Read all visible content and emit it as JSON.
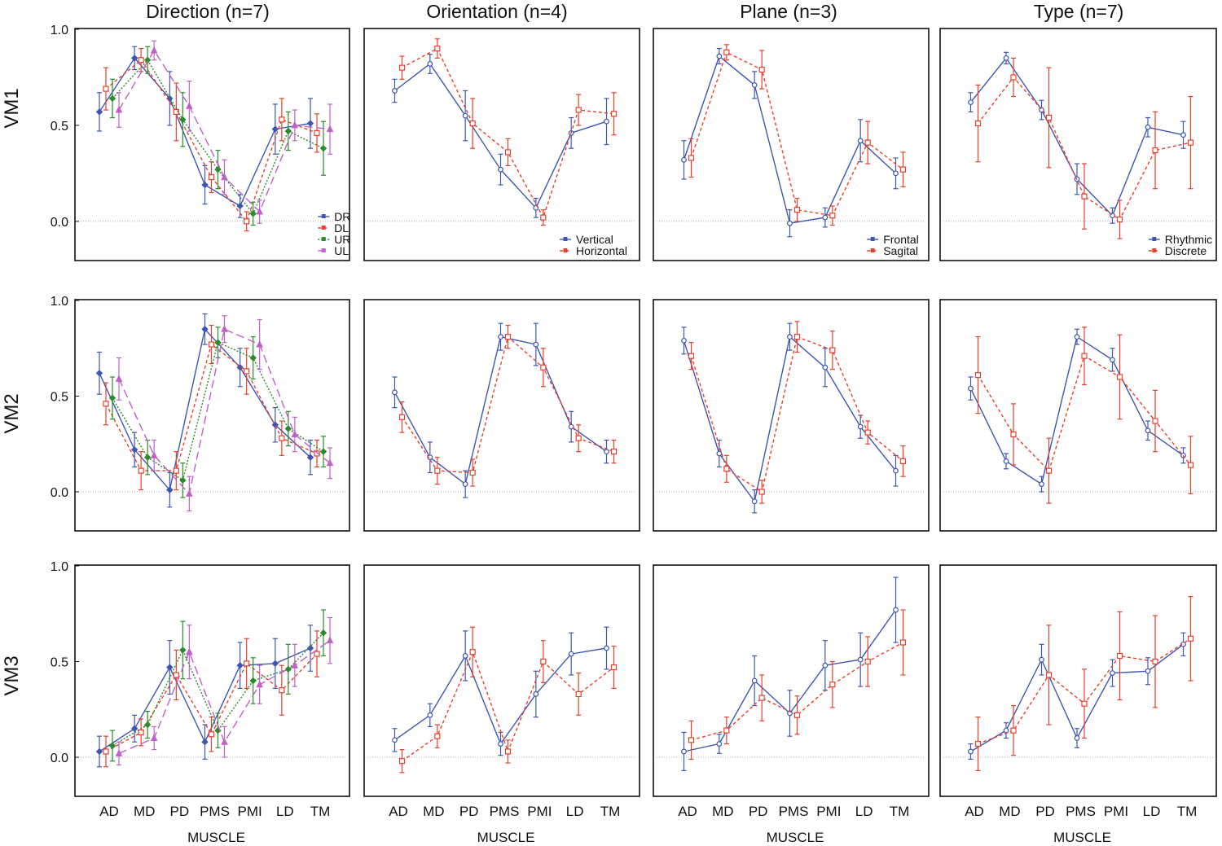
{
  "colors": {
    "DR": "#3e55b5",
    "DL": "#e8402a",
    "UR": "#2b8a2b",
    "UL": "#c060c8",
    "Vertical": "#3e55b5",
    "Horizontal": "#e8402a",
    "Frontal": "#3e55b5",
    "Sagital": "#e8402a",
    "Rhythmic": "#3e55b5",
    "Discrete": "#e8402a"
  },
  "row_labels": [
    "VM1",
    "VM2",
    "VM3"
  ],
  "column_titles": [
    "Direction (n=7)",
    "Orientation (n=4)",
    "Plane (n=3)",
    "Type (n=7)"
  ],
  "chart_data": [
    {
      "type": "line",
      "row": "VM1",
      "title": "Direction (n=7)",
      "categories": [
        "AD",
        "MD",
        "PD",
        "PMS",
        "PMI",
        "LD",
        "TM"
      ],
      "ylim": [
        -0.2,
        1.0
      ],
      "yticks": [
        "1.0",
        "0.5",
        "0.0"
      ],
      "xlabel": "",
      "legend": [
        "DR",
        "DL",
        "UR",
        "UL"
      ],
      "series": [
        {
          "name": "DR",
          "values": [
            0.57,
            0.85,
            0.64,
            0.19,
            0.08,
            0.48,
            0.51
          ],
          "err": [
            0.1,
            0.06,
            0.14,
            0.1,
            0.06,
            0.13,
            0.13
          ]
        },
        {
          "name": "DL",
          "values": [
            0.69,
            0.84,
            0.57,
            0.23,
            0.0,
            0.53,
            0.46
          ],
          "err": [
            0.11,
            0.06,
            0.15,
            0.08,
            0.05,
            0.11,
            0.1
          ]
        },
        {
          "name": "UR",
          "values": [
            0.64,
            0.84,
            0.53,
            0.27,
            0.04,
            0.47,
            0.38
          ],
          "err": [
            0.1,
            0.07,
            0.14,
            0.1,
            0.06,
            0.1,
            0.14
          ]
        },
        {
          "name": "UL",
          "values": [
            0.58,
            0.89,
            0.6,
            0.23,
            0.05,
            0.5,
            0.48
          ],
          "err": [
            0.09,
            0.05,
            0.13,
            0.09,
            0.06,
            0.08,
            0.13
          ]
        }
      ]
    },
    {
      "type": "line",
      "row": "VM1",
      "title": "Orientation (n=4)",
      "categories": [
        "AD",
        "MD",
        "PD",
        "PMS",
        "PMI",
        "LD",
        "TM"
      ],
      "ylim": [
        -0.2,
        1.0
      ],
      "yticks": [],
      "xlabel": "",
      "legend": [
        "Vertical",
        "Horizontal"
      ],
      "series": [
        {
          "name": "Vertical",
          "values": [
            0.68,
            0.82,
            0.55,
            0.27,
            0.07,
            0.46,
            0.52
          ],
          "err": [
            0.06,
            0.05,
            0.13,
            0.08,
            0.05,
            0.08,
            0.12
          ]
        },
        {
          "name": "Horizontal",
          "values": [
            0.8,
            0.9,
            0.51,
            0.36,
            0.02,
            0.58,
            0.56
          ],
          "err": [
            0.06,
            0.05,
            0.13,
            0.07,
            0.04,
            0.08,
            0.11
          ]
        }
      ]
    },
    {
      "type": "line",
      "row": "VM1",
      "title": "Plane (n=3)",
      "categories": [
        "AD",
        "MD",
        "PD",
        "PMS",
        "PMI",
        "LD",
        "TM"
      ],
      "ylim": [
        -0.2,
        1.0
      ],
      "yticks": [],
      "xlabel": "",
      "legend": [
        "Frontal",
        "Sagital"
      ],
      "series": [
        {
          "name": "Frontal",
          "values": [
            0.32,
            0.86,
            0.71,
            -0.01,
            0.02,
            0.42,
            0.25
          ],
          "err": [
            0.1,
            0.04,
            0.07,
            0.07,
            0.05,
            0.11,
            0.08
          ]
        },
        {
          "name": "Sagital",
          "values": [
            0.33,
            0.88,
            0.79,
            0.06,
            0.03,
            0.41,
            0.27
          ],
          "err": [
            0.1,
            0.04,
            0.1,
            0.06,
            0.05,
            0.11,
            0.09
          ]
        }
      ]
    },
    {
      "type": "line",
      "row": "VM1",
      "title": "Type (n=7)",
      "categories": [
        "AD",
        "MD",
        "PD",
        "PMS",
        "PMI",
        "LD",
        "TM"
      ],
      "ylim": [
        -0.2,
        1.0
      ],
      "yticks": [],
      "xlabel": "",
      "legend": [
        "Rhythmic",
        "Discrete"
      ],
      "series": [
        {
          "name": "Rhythmic",
          "values": [
            0.62,
            0.85,
            0.58,
            0.22,
            0.03,
            0.49,
            0.45
          ],
          "err": [
            0.05,
            0.03,
            0.05,
            0.08,
            0.04,
            0.05,
            0.07
          ]
        },
        {
          "name": "Discrete",
          "values": [
            0.51,
            0.75,
            0.54,
            0.13,
            0.01,
            0.37,
            0.41
          ],
          "err": [
            0.2,
            0.1,
            0.26,
            0.17,
            0.1,
            0.2,
            0.24
          ]
        }
      ]
    },
    {
      "type": "line",
      "row": "VM2",
      "title": "Direction (n=7)",
      "categories": [
        "AD",
        "MD",
        "PD",
        "PMS",
        "PMI",
        "LD",
        "TM"
      ],
      "ylim": [
        -0.2,
        1.0
      ],
      "yticks": [
        "1.0",
        "0.5",
        "0.0"
      ],
      "xlabel": "",
      "legend": [],
      "series": [
        {
          "name": "DR",
          "values": [
            0.62,
            0.22,
            0.01,
            0.85,
            0.65,
            0.35,
            0.18
          ],
          "err": [
            0.11,
            0.09,
            0.09,
            0.08,
            0.1,
            0.09,
            0.09
          ]
        },
        {
          "name": "DL",
          "values": [
            0.46,
            0.11,
            0.11,
            0.77,
            0.63,
            0.28,
            0.2
          ],
          "err": [
            0.11,
            0.1,
            0.1,
            0.1,
            0.12,
            0.09,
            0.07
          ]
        },
        {
          "name": "UR",
          "values": [
            0.49,
            0.18,
            0.06,
            0.78,
            0.7,
            0.33,
            0.21
          ],
          "err": [
            0.11,
            0.09,
            0.09,
            0.08,
            0.11,
            0.09,
            0.08
          ]
        },
        {
          "name": "UL",
          "values": [
            0.59,
            0.19,
            -0.01,
            0.85,
            0.77,
            0.3,
            0.15
          ],
          "err": [
            0.11,
            0.08,
            0.09,
            0.07,
            0.13,
            0.09,
            0.08
          ]
        }
      ]
    },
    {
      "type": "line",
      "row": "VM2",
      "title": "Orientation (n=4)",
      "categories": [
        "AD",
        "MD",
        "PD",
        "PMS",
        "PMI",
        "LD",
        "TM"
      ],
      "ylim": [
        -0.2,
        1.0
      ],
      "yticks": [],
      "xlabel": "",
      "legend": [],
      "series": [
        {
          "name": "Vertical",
          "values": [
            0.52,
            0.18,
            0.04,
            0.81,
            0.77,
            0.34,
            0.21
          ],
          "err": [
            0.08,
            0.08,
            0.07,
            0.07,
            0.11,
            0.08,
            0.06
          ]
        },
        {
          "name": "Horizontal",
          "values": [
            0.39,
            0.11,
            0.1,
            0.81,
            0.65,
            0.28,
            0.21
          ],
          "err": [
            0.08,
            0.07,
            0.07,
            0.06,
            0.1,
            0.07,
            0.06
          ]
        }
      ]
    },
    {
      "type": "line",
      "row": "VM2",
      "title": "Plane (n=3)",
      "categories": [
        "AD",
        "MD",
        "PD",
        "PMS",
        "PMI",
        "LD",
        "TM"
      ],
      "ylim": [
        -0.2,
        1.0
      ],
      "yticks": [],
      "xlabel": "",
      "legend": [],
      "series": [
        {
          "name": "Frontal",
          "values": [
            0.79,
            0.2,
            -0.05,
            0.81,
            0.65,
            0.34,
            0.11
          ],
          "err": [
            0.07,
            0.07,
            0.06,
            0.07,
            0.1,
            0.06,
            0.08
          ]
        },
        {
          "name": "Sagital",
          "values": [
            0.71,
            0.12,
            0.0,
            0.81,
            0.74,
            0.31,
            0.16
          ],
          "err": [
            0.07,
            0.07,
            0.06,
            0.08,
            0.1,
            0.06,
            0.08
          ]
        }
      ]
    },
    {
      "type": "line",
      "row": "VM2",
      "title": "Type (n=7)",
      "categories": [
        "AD",
        "MD",
        "PD",
        "PMS",
        "PMI",
        "LD",
        "TM"
      ],
      "ylim": [
        -0.2,
        1.0
      ],
      "yticks": [],
      "xlabel": "",
      "legend": [],
      "series": [
        {
          "name": "Rhythmic",
          "values": [
            0.54,
            0.16,
            0.04,
            0.81,
            0.69,
            0.32,
            0.19
          ],
          "err": [
            0.06,
            0.04,
            0.04,
            0.04,
            0.06,
            0.05,
            0.04
          ]
        },
        {
          "name": "Discrete",
          "values": [
            0.61,
            0.3,
            0.11,
            0.71,
            0.6,
            0.37,
            0.14
          ],
          "err": [
            0.2,
            0.16,
            0.17,
            0.15,
            0.22,
            0.16,
            0.15
          ]
        }
      ]
    },
    {
      "type": "line",
      "row": "VM3",
      "title": "Direction (n=7)",
      "categories": [
        "AD",
        "MD",
        "PD",
        "PMS",
        "PMI",
        "LD",
        "TM"
      ],
      "ylim": [
        -0.2,
        1.0
      ],
      "yticks": [
        "1.0",
        "0.5",
        "0.0"
      ],
      "xlabel": "MUSCLE",
      "legend": [],
      "series": [
        {
          "name": "DR",
          "values": [
            0.03,
            0.15,
            0.47,
            0.08,
            0.48,
            0.49,
            0.57
          ],
          "err": [
            0.08,
            0.07,
            0.14,
            0.09,
            0.12,
            0.13,
            0.12
          ]
        },
        {
          "name": "DL",
          "values": [
            0.03,
            0.13,
            0.43,
            0.12,
            0.49,
            0.35,
            0.54
          ],
          "err": [
            0.08,
            0.07,
            0.13,
            0.09,
            0.13,
            0.13,
            0.12
          ]
        },
        {
          "name": "UR",
          "values": [
            0.06,
            0.17,
            0.56,
            0.14,
            0.4,
            0.46,
            0.65
          ],
          "err": [
            0.08,
            0.07,
            0.15,
            0.09,
            0.12,
            0.13,
            0.12
          ]
        },
        {
          "name": "UL",
          "values": [
            0.02,
            0.1,
            0.55,
            0.08,
            0.38,
            0.48,
            0.61
          ],
          "err": [
            0.06,
            0.06,
            0.14,
            0.08,
            0.1,
            0.11,
            0.12
          ]
        }
      ]
    },
    {
      "type": "line",
      "row": "VM3",
      "title": "Orientation (n=4)",
      "categories": [
        "AD",
        "MD",
        "PD",
        "PMS",
        "PMI",
        "LD",
        "TM"
      ],
      "ylim": [
        -0.2,
        1.0
      ],
      "yticks": [],
      "xlabel": "MUSCLE",
      "legend": [],
      "series": [
        {
          "name": "Vertical",
          "values": [
            0.09,
            0.22,
            0.53,
            0.07,
            0.33,
            0.54,
            0.57
          ],
          "err": [
            0.06,
            0.06,
            0.13,
            0.06,
            0.12,
            0.11,
            0.11
          ]
        },
        {
          "name": "Horizontal",
          "values": [
            -0.02,
            0.11,
            0.55,
            0.03,
            0.5,
            0.33,
            0.47
          ],
          "err": [
            0.06,
            0.06,
            0.13,
            0.06,
            0.11,
            0.11,
            0.11
          ]
        }
      ]
    },
    {
      "type": "line",
      "row": "VM3",
      "title": "Plane (n=3)",
      "categories": [
        "AD",
        "MD",
        "PD",
        "PMS",
        "PMI",
        "LD",
        "TM"
      ],
      "ylim": [
        -0.2,
        1.0
      ],
      "yticks": [],
      "xlabel": "MUSCLE",
      "legend": [],
      "series": [
        {
          "name": "Frontal",
          "values": [
            0.03,
            0.07,
            0.4,
            0.23,
            0.48,
            0.51,
            0.77
          ],
          "err": [
            0.1,
            0.05,
            0.13,
            0.12,
            0.13,
            0.14,
            0.17
          ]
        },
        {
          "name": "Sagital",
          "values": [
            0.09,
            0.14,
            0.31,
            0.22,
            0.38,
            0.5,
            0.6
          ],
          "err": [
            0.1,
            0.07,
            0.12,
            0.1,
            0.12,
            0.13,
            0.17
          ]
        }
      ]
    },
    {
      "type": "line",
      "row": "VM3",
      "title": "Type (n=7)",
      "categories": [
        "AD",
        "MD",
        "PD",
        "PMS",
        "PMI",
        "LD",
        "TM"
      ],
      "ylim": [
        -0.2,
        1.0
      ],
      "yticks": [],
      "xlabel": "MUSCLE",
      "legend": [],
      "series": [
        {
          "name": "Rhythmic",
          "values": [
            0.03,
            0.14,
            0.51,
            0.1,
            0.44,
            0.45,
            0.59
          ],
          "err": [
            0.04,
            0.04,
            0.08,
            0.05,
            0.07,
            0.07,
            0.06
          ]
        },
        {
          "name": "Discrete",
          "values": [
            0.07,
            0.14,
            0.43,
            0.28,
            0.53,
            0.5,
            0.62
          ],
          "err": [
            0.14,
            0.13,
            0.26,
            0.18,
            0.23,
            0.24,
            0.22
          ]
        }
      ]
    }
  ]
}
